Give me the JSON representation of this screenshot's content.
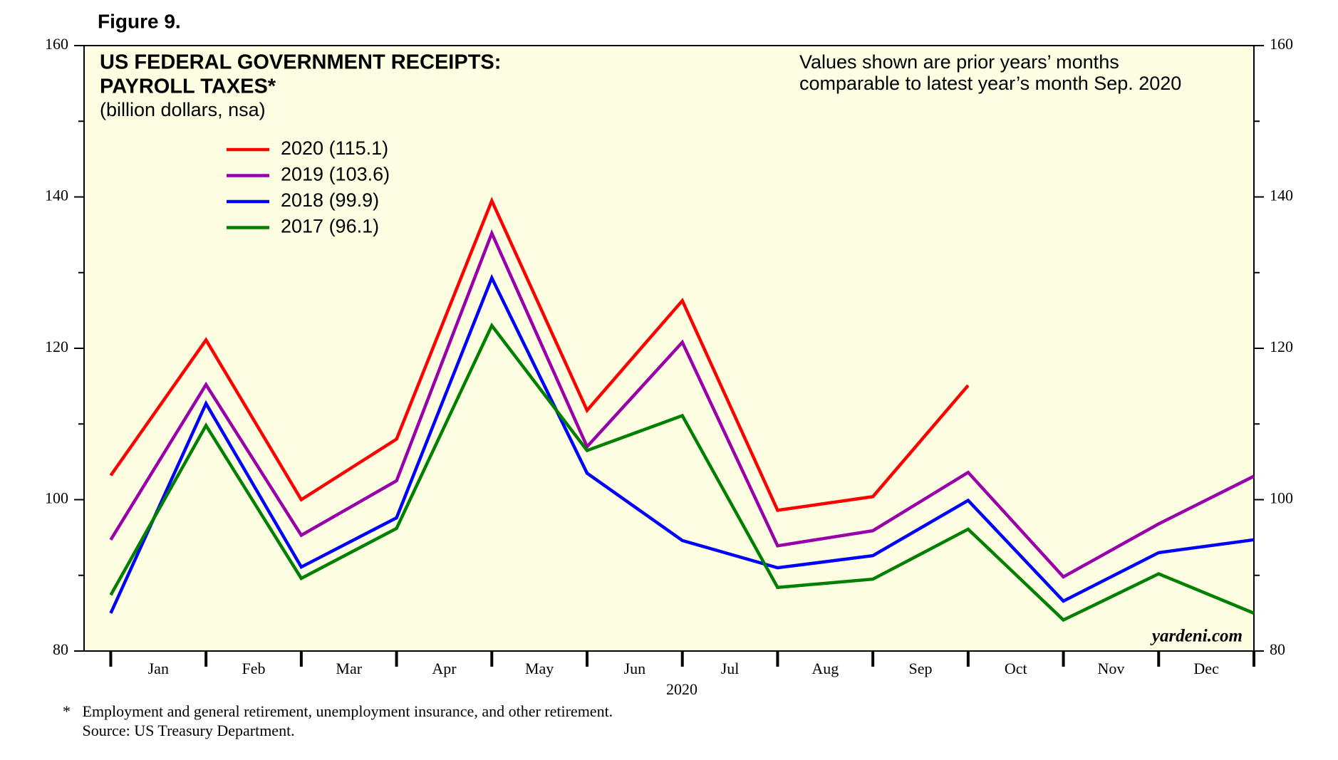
{
  "chart_data": {
    "type": "line",
    "figure_label": "Figure 9.",
    "title": [
      "US FEDERAL GOVERNMENT RECEIPTS:",
      "PAYROLL TAXES*"
    ],
    "subtitle": "(billion dollars, nsa)",
    "annotation": [
      "Values shown are prior years’ months",
      "comparable to latest year’s month Sep. 2020"
    ],
    "watermark": "yardeni.com",
    "x_label": "2020",
    "footnotes": [
      "*   Employment and general retirement, unemployment insurance, and other retirement.",
      "     Source: US Treasury Department."
    ],
    "x": [
      0,
      1,
      2,
      3,
      4,
      5,
      6,
      7,
      8,
      9,
      10,
      11,
      12
    ],
    "xlim": [
      -0.28,
      12
    ],
    "xticks": [
      {
        "value": 0.5,
        "label": "Jan"
      },
      {
        "value": 1.5,
        "label": "Feb"
      },
      {
        "value": 2.5,
        "label": "Mar"
      },
      {
        "value": 3.5,
        "label": "Apr"
      },
      {
        "value": 4.5,
        "label": "May"
      },
      {
        "value": 5.5,
        "label": "Jun"
      },
      {
        "value": 6.5,
        "label": "Jul"
      },
      {
        "value": 7.5,
        "label": "Aug"
      },
      {
        "value": 8.5,
        "label": "Sep"
      },
      {
        "value": 9.5,
        "label": "Oct"
      },
      {
        "value": 10.5,
        "label": "Nov"
      },
      {
        "value": 11.5,
        "label": "Dec"
      }
    ],
    "xminorticks": [
      0,
      1,
      2,
      3,
      4,
      5,
      6,
      7,
      8,
      9,
      10,
      11,
      12
    ],
    "ylim": [
      80,
      160
    ],
    "yticks": [
      80,
      100,
      120,
      140,
      160
    ],
    "yminorticks": [
      90,
      110,
      130,
      150
    ],
    "y2lim": [
      80,
      160
    ],
    "y2ticks": [
      80,
      100,
      120,
      140,
      160
    ],
    "background": "#fdfde1",
    "series": [
      {
        "name": "2020 (115.1)",
        "color": "#ff0000",
        "values": [
          103.2,
          121.1,
          100,
          108,
          139.5,
          111.8,
          126.3,
          98.6,
          100.4,
          115.1,
          null,
          null,
          null
        ]
      },
      {
        "name": "2019 (103.6)",
        "color": "#9900aa",
        "values": [
          94.7,
          115.2,
          95.3,
          102.5,
          135.2,
          107,
          120.8,
          93.9,
          95.9,
          103.6,
          89.8,
          96.8,
          103.1
        ]
      },
      {
        "name": "2018 (99.9)",
        "color": "#0000ff",
        "values": [
          85,
          112.7,
          91.1,
          97.6,
          129.3,
          103.5,
          94.6,
          91,
          92.6,
          99.9,
          86.6,
          93,
          94.7
        ]
      },
      {
        "name": "2017 (96.1)",
        "color": "#008000",
        "values": [
          87.4,
          109.8,
          89.6,
          96.2,
          123,
          106.5,
          111.1,
          88.4,
          89.5,
          96.1,
          84.1,
          90.2,
          85
        ]
      }
    ]
  }
}
